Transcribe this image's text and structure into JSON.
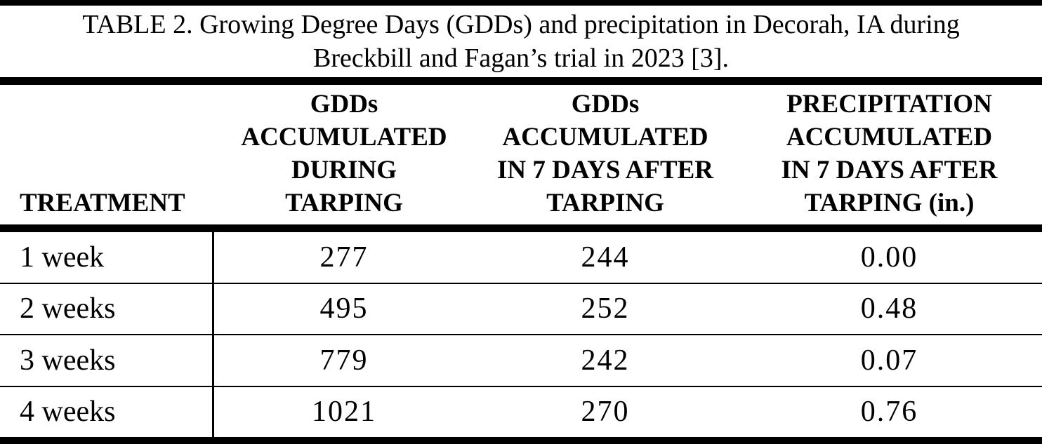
{
  "caption": {
    "lines": [
      "TABLE 2. Growing Degree Days (GDDs) and precipitation in Decorah, IA during",
      "Breckbill and Fagan’s trial in 2023 [3]."
    ]
  },
  "table": {
    "columns": [
      {
        "header": "TREATMENT"
      },
      {
        "header": "GDDs\nACCUMULATED\nDURING\nTARPING"
      },
      {
        "header": "GDDs\nACCUMULATED\nIN 7 DAYS AFTER\nTARPING"
      },
      {
        "header": "PRECIPITATION\nACCUMULATED\nIN 7 DAYS AFTER\nTARPING (in.)"
      }
    ],
    "rows": [
      {
        "treatment": "1 week",
        "gdds_during_tarping": "277",
        "gdds_7days_after": "244",
        "precip_7days_after_in": "0.00"
      },
      {
        "treatment": "2 weeks",
        "gdds_during_tarping": "495",
        "gdds_7days_after": "252",
        "precip_7days_after_in": "0.48"
      },
      {
        "treatment": "3 weeks",
        "gdds_during_tarping": "779",
        "gdds_7days_after": "242",
        "precip_7days_after_in": "0.07"
      },
      {
        "treatment": "4 weeks",
        "gdds_during_tarping": "1021",
        "gdds_7days_after": "270",
        "precip_7days_after_in": "0.76"
      }
    ]
  },
  "colors": {
    "text": "#000000",
    "background": "#ffffff",
    "rule": "#000000"
  }
}
